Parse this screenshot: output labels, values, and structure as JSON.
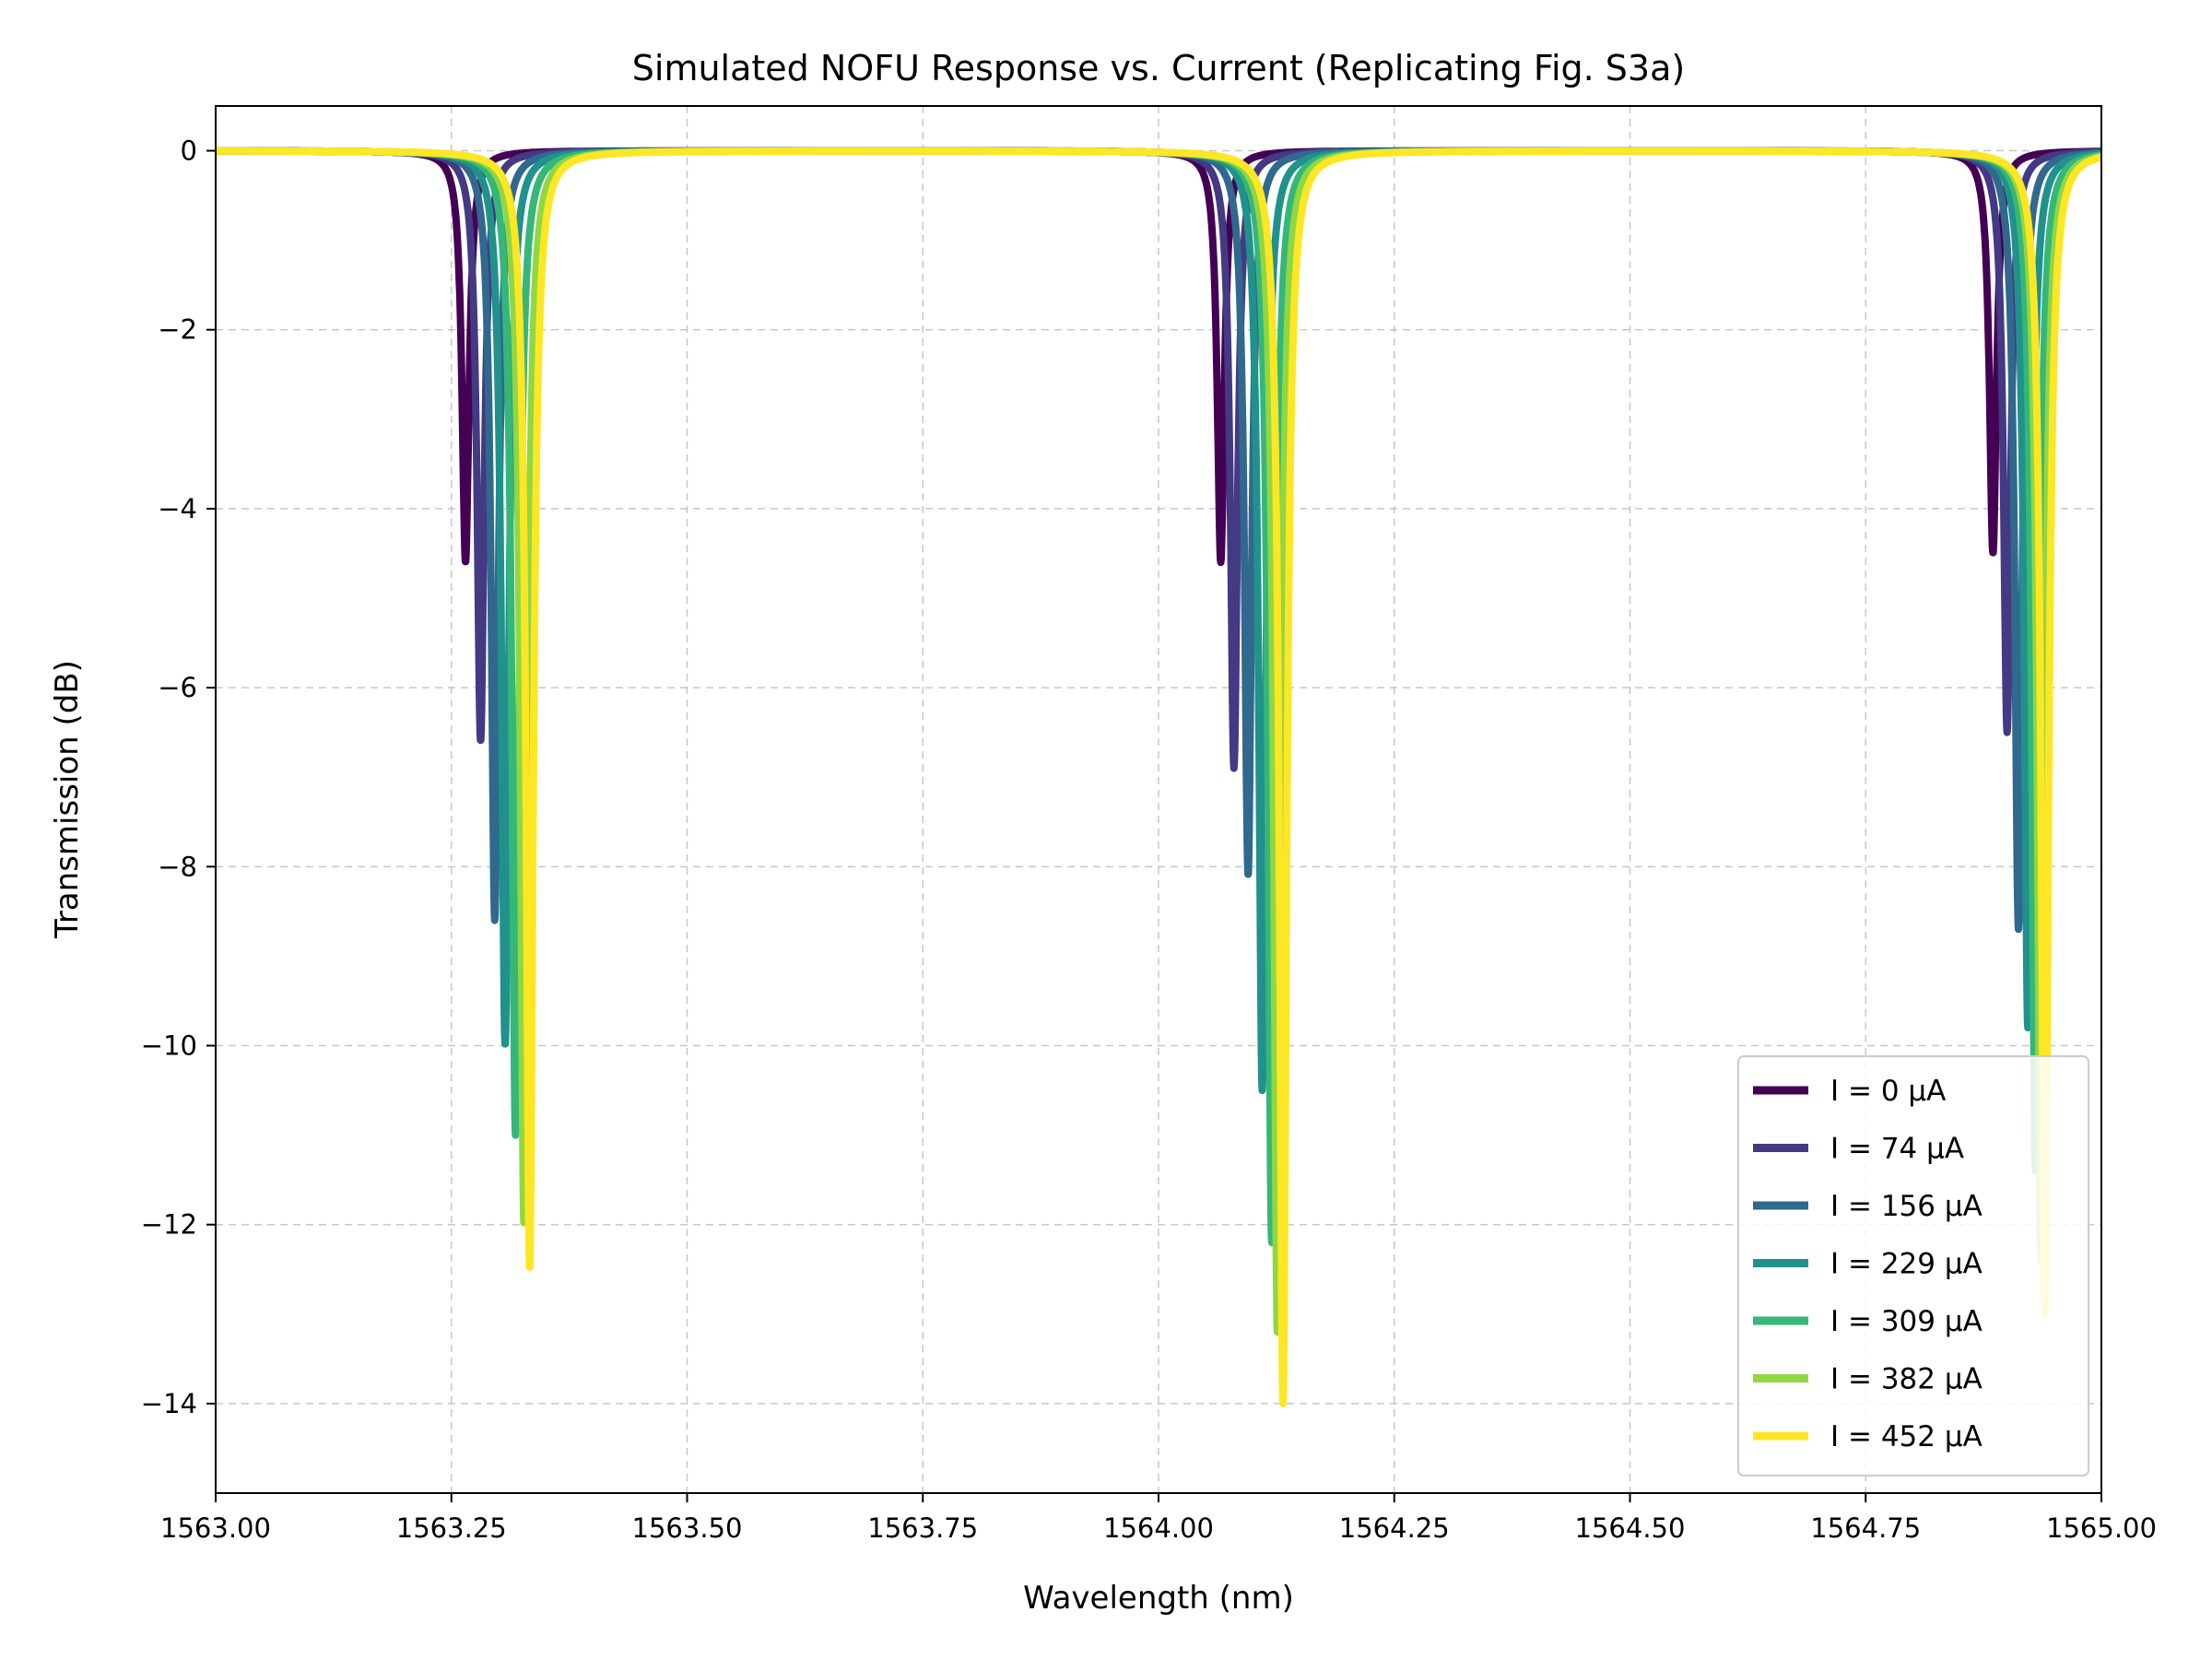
{
  "chart_data": {
    "type": "line",
    "title": "Simulated NOFU Response vs. Current (Replicating Fig. S3a)",
    "xlabel": "Wavelength (nm)",
    "ylabel": "Transmission (dB)",
    "xlim": [
      1563.0,
      1565.0
    ],
    "ylim": [
      -15,
      0.5
    ],
    "xticks": [
      1563.0,
      1563.25,
      1563.5,
      1563.75,
      1564.0,
      1564.25,
      1564.5,
      1564.75,
      1565.0
    ],
    "xtick_labels": [
      "1563.00",
      "1563.25",
      "1563.50",
      "1563.75",
      "1564.00",
      "1564.25",
      "1564.50",
      "1564.75",
      "1565.00"
    ],
    "yticks": [
      0,
      -2,
      -4,
      -6,
      -8,
      -10,
      -12,
      -14
    ],
    "ytick_labels": [
      "0",
      "−2",
      "−4",
      "−6",
      "−8",
      "−10",
      "−12",
      "−14"
    ],
    "grid": true,
    "legend_position": "bottom-right",
    "series": [
      {
        "name": "I = 0 µA",
        "color": "#440154",
        "dips": [
          {
            "center": 1563.265,
            "depth": -4.6,
            "width": 0.0045
          },
          {
            "center": 1564.066,
            "depth": -4.6,
            "width": 0.0045
          },
          {
            "center": 1564.885,
            "depth": -4.5,
            "width": 0.0045
          }
        ]
      },
      {
        "name": "I = 74 µA",
        "color": "#443983",
        "dips": [
          {
            "center": 1563.281,
            "depth": -6.6,
            "width": 0.0045
          },
          {
            "center": 1564.08,
            "depth": -6.9,
            "width": 0.0045
          },
          {
            "center": 1564.9,
            "depth": -6.5,
            "width": 0.0045
          }
        ]
      },
      {
        "name": "I = 156 µA",
        "color": "#31688e",
        "dips": [
          {
            "center": 1563.296,
            "depth": -8.6,
            "width": 0.0045
          },
          {
            "center": 1564.095,
            "depth": -8.1,
            "width": 0.0045
          },
          {
            "center": 1564.912,
            "depth": -8.7,
            "width": 0.0045
          }
        ]
      },
      {
        "name": "I = 229 µA",
        "color": "#21918c",
        "dips": [
          {
            "center": 1563.307,
            "depth": -10.0,
            "width": 0.0045
          },
          {
            "center": 1564.11,
            "depth": -10.5,
            "width": 0.0045
          },
          {
            "center": 1564.922,
            "depth": -9.8,
            "width": 0.0045
          }
        ]
      },
      {
        "name": "I = 309 µA",
        "color": "#35b779",
        "dips": [
          {
            "center": 1563.318,
            "depth": -11.0,
            "width": 0.0045
          },
          {
            "center": 1564.12,
            "depth": -12.2,
            "width": 0.0045
          },
          {
            "center": 1564.93,
            "depth": -11.4,
            "width": 0.0045
          }
        ]
      },
      {
        "name": "I = 382 µA",
        "color": "#90d743",
        "dips": [
          {
            "center": 1563.327,
            "depth": -12.0,
            "width": 0.0045
          },
          {
            "center": 1564.126,
            "depth": -13.2,
            "width": 0.0045
          },
          {
            "center": 1564.936,
            "depth": -12.4,
            "width": 0.0045
          }
        ]
      },
      {
        "name": "I = 452 µA",
        "color": "#fde725",
        "dips": [
          {
            "center": 1563.333,
            "depth": -12.5,
            "width": 0.0045
          },
          {
            "center": 1564.132,
            "depth": -14.0,
            "width": 0.0045
          },
          {
            "center": 1564.94,
            "depth": -13.0,
            "width": 0.0045
          }
        ]
      }
    ]
  }
}
